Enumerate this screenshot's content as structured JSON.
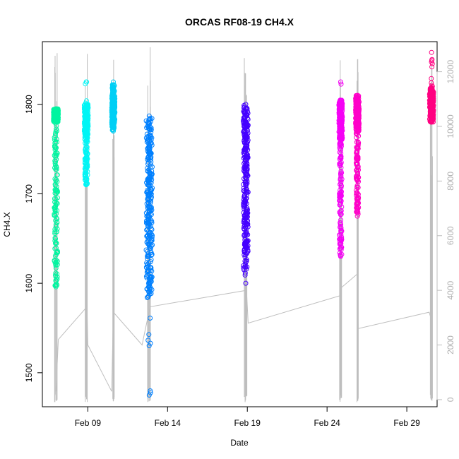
{
  "chart_data": {
    "type": "scatter",
    "title": "ORCAS RF08-19 CH4.X",
    "xlabel": "Date",
    "ylabel": "CH4.X",
    "x_ticks": [
      "Feb 09",
      "Feb 14",
      "Feb 19",
      "Feb 24",
      "Feb 29"
    ],
    "x_tick_day": [
      9,
      14,
      19,
      24,
      29
    ],
    "xlim": [
      6.15,
      30.9
    ],
    "ylim": [
      1462,
      1870
    ],
    "y_ticks": [
      1500,
      1600,
      1700,
      1800
    ],
    "y2_ticks": [
      0,
      2000,
      4000,
      6000,
      8000,
      10000,
      12000
    ],
    "y2lim": [
      -260,
      13100
    ],
    "y2_color": "#bebebe",
    "flights": [
      {
        "day": 7.0,
        "width": 0.3,
        "color": "#00f5a0",
        "main_range": [
          1780,
          1795
        ],
        "mid_range": [
          1596,
          1780
        ],
        "extremes": [
          1596,
          1795
        ]
      },
      {
        "day": 8.9,
        "width": 0.25,
        "color": "#00f5f5",
        "main_range": [
          1765,
          1800
        ],
        "mid_range": [
          1710,
          1790
        ],
        "extremes": [
          1710,
          1825
        ]
      },
      {
        "day": 10.6,
        "width": 0.2,
        "color": "#00cff5",
        "main_range": [
          1775,
          1810
        ],
        "mid_range": [
          1770,
          1822
        ],
        "extremes": [
          1770,
          1825
        ]
      },
      {
        "day": 12.85,
        "width": 0.38,
        "color": "#0080ff",
        "main_range": [
          1590,
          1785
        ],
        "mid_range": [
          1580,
          1785
        ],
        "extremes": [
          1475,
          1787
        ]
      },
      {
        "day": 18.9,
        "width": 0.3,
        "color": "#4400ff",
        "main_range": [
          1615,
          1800
        ],
        "mid_range": [
          1625,
          1795
        ],
        "extremes": [
          1600,
          1800
        ]
      },
      {
        "day": 24.85,
        "width": 0.22,
        "color": "#f500f5",
        "main_range": [
          1760,
          1805
        ],
        "mid_range": [
          1630,
          1790
        ],
        "extremes": [
          1630,
          1825
        ]
      },
      {
        "day": 25.9,
        "width": 0.22,
        "color": "#ff00c8",
        "main_range": [
          1770,
          1810
        ],
        "mid_range": [
          1675,
          1790
        ],
        "extremes": [
          1675,
          1810
        ]
      },
      {
        "day": 30.55,
        "width": 0.25,
        "color": "#ff0080",
        "main_range": [
          1780,
          1815
        ],
        "mid_range": [
          1785,
          1820
        ],
        "extremes": [
          1780,
          1858
        ]
      }
    ],
    "altitude_track": [
      [
        7.0,
        300
      ],
      [
        7.15,
        2200
      ],
      [
        8.95,
        3400
      ],
      [
        9.0,
        2000
      ],
      [
        10.5,
        300
      ],
      [
        10.6,
        3200
      ],
      [
        12.4,
        2000
      ],
      [
        12.9,
        3400
      ],
      [
        18.95,
        4000
      ],
      [
        19.05,
        2800
      ],
      [
        24.8,
        3800
      ],
      [
        24.9,
        4100
      ],
      [
        25.9,
        4600
      ],
      [
        25.95,
        2600
      ],
      [
        30.4,
        3200
      ],
      [
        30.5,
        3000
      ]
    ]
  }
}
